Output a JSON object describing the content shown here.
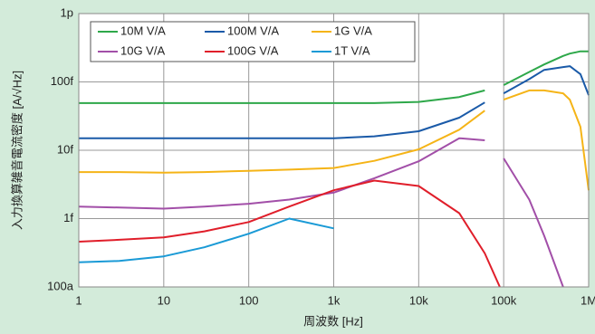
{
  "chart_data": {
    "type": "line",
    "xlabel": "周波数 [Hz]",
    "ylabel": "入力換算雑音電流密度 [A/√Hz]",
    "xscale": "log",
    "yscale": "log",
    "grid": true,
    "xlim": [
      1,
      1000000
    ],
    "ylim": [
      1e-16,
      1e-12
    ],
    "xticks": [
      1,
      10,
      100,
      {
        "value": 1000,
        "label": "1k"
      },
      {
        "value": 10000,
        "label": "10k"
      },
      {
        "value": 100000,
        "label": "100k"
      },
      {
        "value": 1000000,
        "label": "1M"
      }
    ],
    "yticks": [
      {
        "value": 1e-16,
        "label": "100a"
      },
      {
        "value": 1e-15,
        "label": "1f"
      },
      {
        "value": 1e-14,
        "label": "10f"
      },
      {
        "value": 1e-13,
        "label": "100f"
      },
      {
        "value": 1e-12,
        "label": "1p"
      }
    ],
    "x": [
      1,
      3,
      10,
      30,
      100,
      300,
      1000,
      3000,
      10000,
      30000,
      60000,
      90000,
      100000,
      200000,
      300000,
      500000,
      600000,
      800000,
      1000000
    ],
    "series": [
      {
        "name": "10M V/A",
        "color": "#2ea84a",
        "values": [
          4.9e-14,
          4.9e-14,
          4.9e-14,
          4.9e-14,
          4.9e-14,
          4.9e-14,
          4.9e-14,
          4.9e-14,
          5.1e-14,
          6e-14,
          7.5e-14,
          null,
          9e-14,
          1.4e-13,
          1.8e-13,
          2.4e-13,
          2.6e-13,
          2.8e-13,
          2.8e-13
        ]
      },
      {
        "name": "100M V/A",
        "color": "#1a5aa8",
        "values": [
          1.5e-14,
          1.5e-14,
          1.5e-14,
          1.5e-14,
          1.5e-14,
          1.5e-14,
          1.5e-14,
          1.6e-14,
          1.9e-14,
          3e-14,
          5e-14,
          null,
          6.8e-14,
          1.1e-13,
          1.5e-13,
          1.65e-13,
          1.7e-13,
          1.3e-13,
          6.4e-14
        ]
      },
      {
        "name": "1G V/A",
        "color": "#f5b417",
        "values": [
          4.8e-15,
          4.8e-15,
          4.7e-15,
          4.8e-15,
          5e-15,
          5.2e-15,
          5.5e-15,
          7e-15,
          1.03e-14,
          2e-14,
          3.8e-14,
          null,
          5.5e-14,
          7.5e-14,
          7.5e-14,
          6.8e-14,
          5.5e-14,
          2.2e-14,
          2.6e-15
        ]
      },
      {
        "name": "10G V/A",
        "color": "#a24fa8",
        "values": [
          1.5e-15,
          1.45e-15,
          1.4e-15,
          1.5e-15,
          1.65e-15,
          1.9e-15,
          2.4e-15,
          3.9e-15,
          6.9e-15,
          1.5e-14,
          1.4e-14,
          null,
          7.6e-15,
          1.9e-15,
          5.6e-16,
          1e-16,
          null,
          null,
          null
        ]
      },
      {
        "name": "100G V/A",
        "color": "#e01e2a",
        "values": [
          4.6e-16,
          4.9e-16,
          5.3e-16,
          6.5e-16,
          8.9e-16,
          1.5e-15,
          2.6e-15,
          3.6e-15,
          3e-15,
          1.2e-15,
          3.1e-16,
          1e-16,
          null,
          null,
          null,
          null,
          null,
          null,
          null
        ]
      },
      {
        "name": "1T V/A",
        "color": "#1a9ad6",
        "values": [
          2.3e-16,
          2.4e-16,
          2.8e-16,
          3.8e-16,
          6e-16,
          1e-15,
          7.2e-16,
          null,
          null,
          null,
          null,
          null,
          null,
          null,
          null,
          null,
          null,
          null,
          null
        ]
      }
    ]
  }
}
